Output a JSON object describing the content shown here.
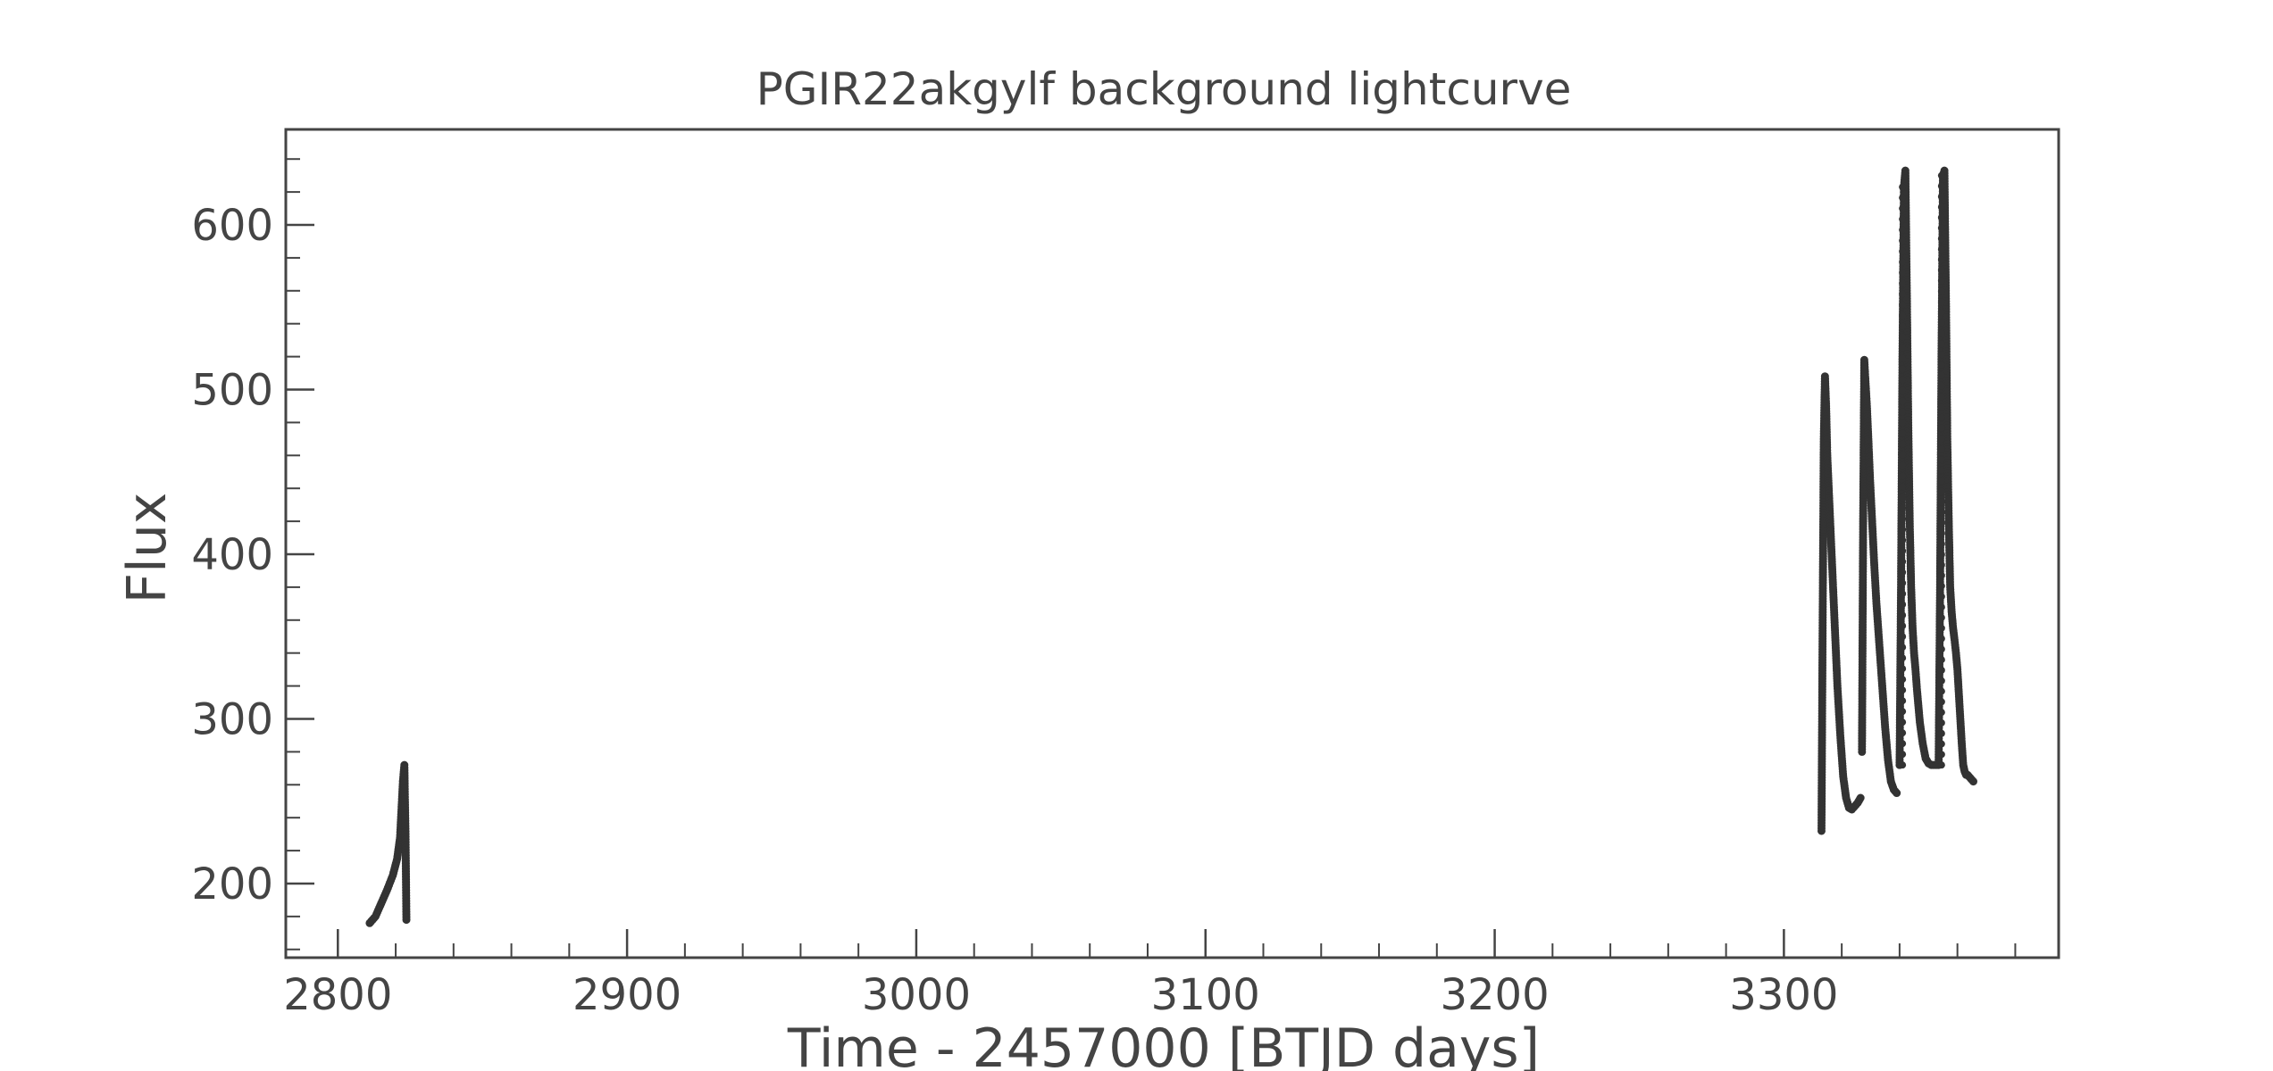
{
  "chart_data": {
    "type": "scatter",
    "title": "PGIR22akgylf background lightcurve",
    "xlabel": "Time - 2457000 [BTJD days]",
    "ylabel": "Flux",
    "xlim": [
      2782,
      3395
    ],
    "ylim": [
      155,
      658
    ],
    "xticks": [
      2800,
      2900,
      3000,
      3100,
      3200,
      3300
    ],
    "xtick_labels": [
      "2800",
      "2900",
      "3000",
      "3100",
      "3200",
      "3300"
    ],
    "yticks": [
      200,
      300,
      400,
      500,
      600
    ],
    "ytick_labels": [
      "200",
      "300",
      "400",
      "500",
      "600"
    ],
    "grid": false,
    "series": [
      {
        "color": "#333333",
        "segments": [
          {
            "x": [
              2811.0,
              2813.0,
              2815.0,
              2817.0,
              2819.0,
              2820.5,
              2821.5,
              2822.0,
              2822.5,
              2823.0,
              2823.4,
              2823.7
            ],
            "y": [
              176,
              180,
              188,
              196,
              205,
              215,
              228,
              245,
              262,
              272,
              230,
              178
            ]
          },
          {
            "x": [
              3313.0,
              3313.4,
              3313.8,
              3314.2,
              3314.6,
              3315.0,
              3315.5,
              3316.0,
              3316.5,
              3317.0,
              3317.5,
              3318.0,
              3318.5,
              3319.5,
              3320.5,
              3321.5,
              3322.5,
              3323.5,
              3324.5,
              3325.5,
              3326.5
            ],
            "y": [
              232,
              360,
              470,
              508,
              490,
              460,
              440,
              420,
              400,
              380,
              360,
              340,
              320,
              290,
              265,
              252,
              246,
              245,
              247,
              249,
              252
            ]
          },
          {
            "x": [
              3327.0,
              3327.4,
              3327.8,
              3328.2,
              3328.7,
              3329.2,
              3329.8,
              3330.5,
              3331.2,
              3332.0,
              3333.0,
              3334.0,
              3335.0,
              3336.0,
              3337.0,
              3338.0,
              3339.0
            ],
            "y": [
              280,
              420,
              518,
              505,
              490,
              470,
              445,
              420,
              395,
              370,
              345,
              320,
              295,
              275,
              262,
              257,
              255
            ]
          },
          {
            "x": [
              3340.0,
              3340.5,
              3341.0,
              3341.5,
              3342.0,
              3342.5,
              3343.0,
              3343.5,
              3344.0,
              3344.5,
              3345.0,
              3345.5,
              3346.0,
              3346.5,
              3347.0,
              3348.0,
              3349.0,
              3350.0,
              3351.0,
              3352.0,
              3353.0
            ],
            "y": [
              272,
              380,
              520,
              623,
              633,
              560,
              480,
              420,
              380,
              355,
              340,
              330,
              318,
              308,
              298,
              285,
              276,
              273,
              272,
              272,
              272
            ]
          },
          {
            "x": [
              3353.5,
              3354.0,
              3354.5,
              3355.0,
              3355.5,
              3356.0,
              3356.5,
              3357.0,
              3357.5,
              3358.0,
              3358.5,
              3359.0,
              3359.5,
              3360.0,
              3360.5,
              3361.0,
              3361.5,
              3362.0,
              3362.5,
              3363.0,
              3363.5,
              3364.0,
              3364.5,
              3365.0,
              3365.5
            ],
            "y": [
              272,
              380,
              520,
              630,
              633,
              560,
              470,
              420,
              380,
              365,
              355,
              348,
              340,
              330,
              315,
              300,
              285,
              272,
              268,
              266,
              266,
              265,
              264,
              263,
              262
            ]
          }
        ],
        "dotted_rises": [
          {
            "x": 3341.0,
            "y_from": 272,
            "y_to": 623
          },
          {
            "x": 3354.5,
            "y_from": 272,
            "y_to": 630
          }
        ]
      }
    ]
  }
}
